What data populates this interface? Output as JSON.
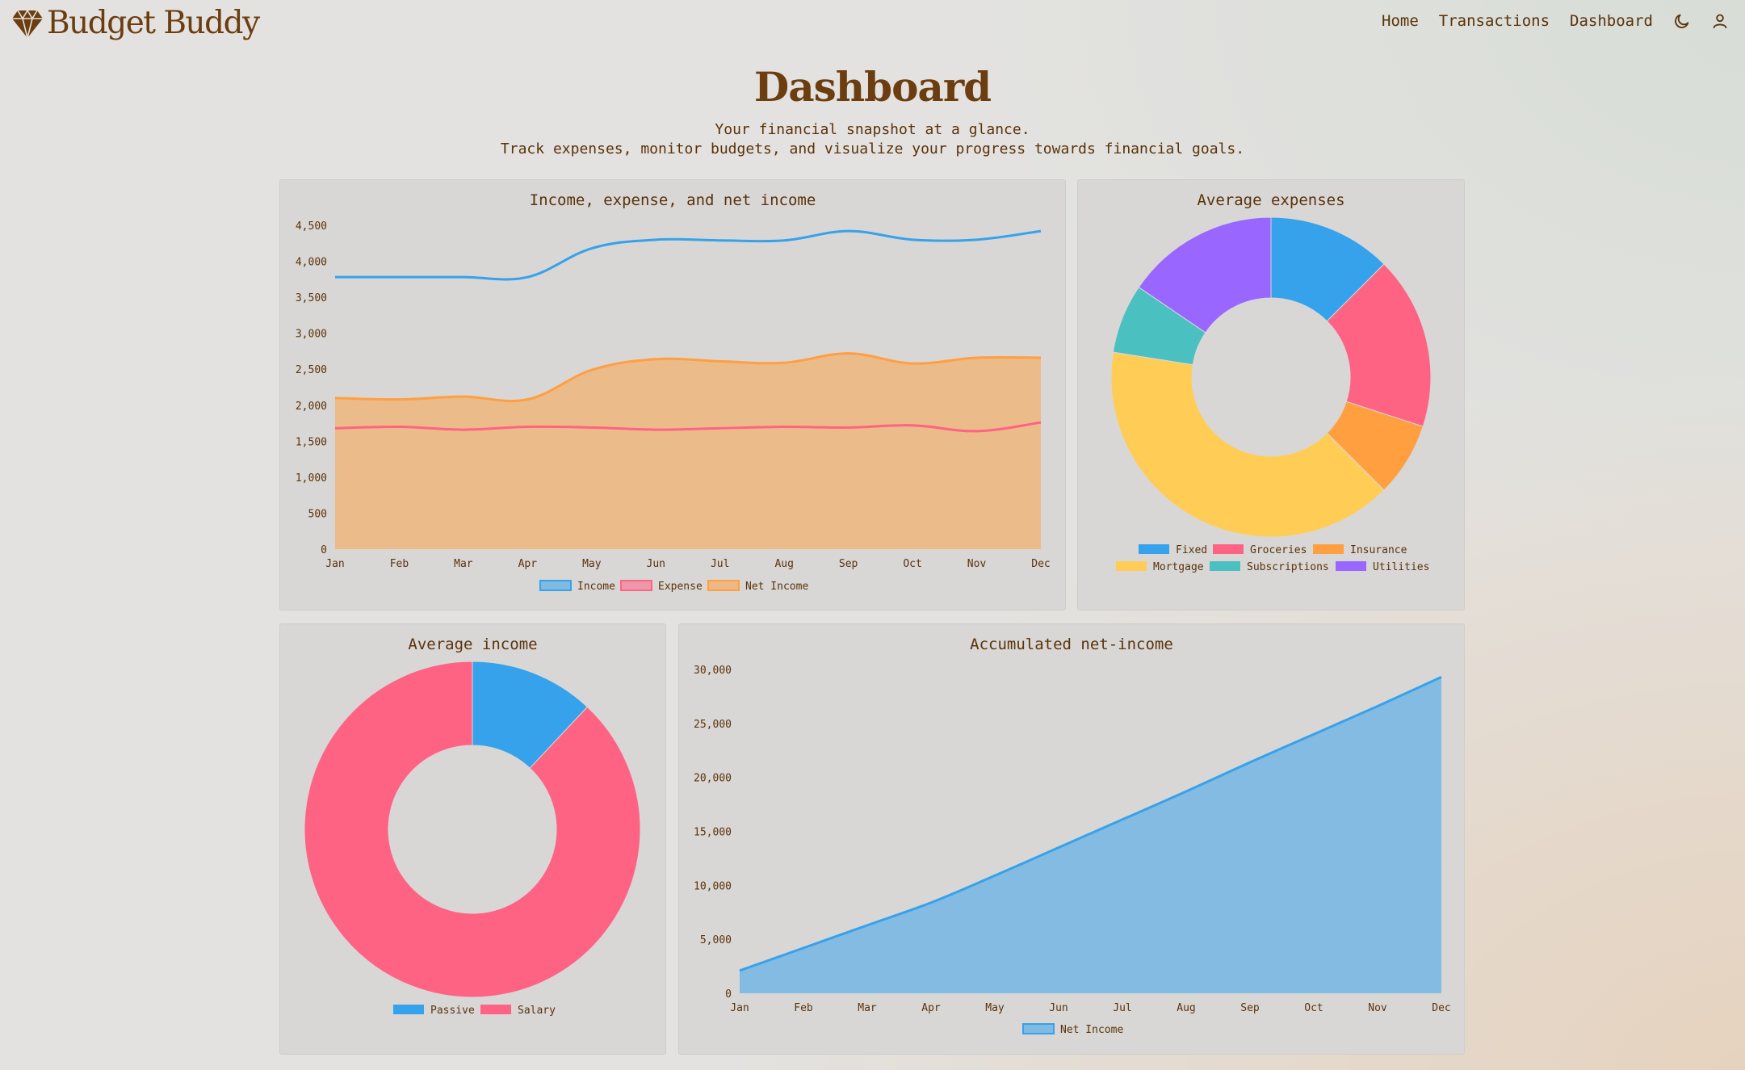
{
  "app": {
    "brand": "Budget Buddy",
    "nav": [
      {
        "label": "Home"
      },
      {
        "label": "Transactions"
      },
      {
        "label": "Dashboard"
      }
    ]
  },
  "page": {
    "title": "Dashboard",
    "subtitle_line1": "Your financial snapshot at a glance.",
    "subtitle_line2": "Track expenses, monitor budgets, and visualize your progress towards financial goals."
  },
  "colors": {
    "text": "#5b3209",
    "blue": "#36a2eb",
    "pink": "#ff6384",
    "orange": "#ff9f40",
    "yellow": "#ffcd56",
    "teal": "#4bc0c0",
    "purple": "#9966ff"
  },
  "chart_data": [
    {
      "id": "income_expense_net",
      "type": "line",
      "title": "Income, expense, and net income",
      "categories": [
        "Jan",
        "Feb",
        "Mar",
        "Apr",
        "May",
        "Jun",
        "Jul",
        "Aug",
        "Sep",
        "Oct",
        "Nov",
        "Dec"
      ],
      "series": [
        {
          "name": "Income",
          "color": "#36a2eb",
          "fill": false,
          "values": [
            3780,
            3780,
            3780,
            3780,
            4180,
            4300,
            4290,
            4290,
            4420,
            4300,
            4300,
            4420
          ]
        },
        {
          "name": "Expense",
          "color": "#ff6384",
          "fill": false,
          "values": [
            1680,
            1700,
            1660,
            1700,
            1690,
            1660,
            1680,
            1700,
            1690,
            1720,
            1640,
            1760
          ]
        },
        {
          "name": "Net Income",
          "color": "#ff9f40",
          "fill": true,
          "values": [
            2100,
            2080,
            2120,
            2080,
            2490,
            2640,
            2610,
            2590,
            2720,
            2580,
            2660,
            2660
          ]
        }
      ],
      "ylim": [
        0,
        4500
      ],
      "yticks": [
        0,
        500,
        1000,
        1500,
        2000,
        2500,
        3000,
        3500,
        4000,
        4500
      ],
      "legend": "bottom"
    },
    {
      "id": "average_expenses",
      "type": "pie",
      "title": "Average expenses",
      "labels": [
        "Fixed",
        "Groceries",
        "Insurance",
        "Mortgage",
        "Subscriptions",
        "Utilities"
      ],
      "values": [
        12.5,
        17.5,
        7.5,
        40,
        7,
        15.5
      ],
      "colors": [
        "#36a2eb",
        "#ff6384",
        "#ff9f40",
        "#ffcd56",
        "#4bc0c0",
        "#9966ff"
      ],
      "legend": "bottom"
    },
    {
      "id": "average_income",
      "type": "pie",
      "title": "Average income",
      "labels": [
        "Passive",
        "Salary"
      ],
      "values": [
        12,
        88
      ],
      "colors": [
        "#36a2eb",
        "#ff6384"
      ],
      "legend": "bottom"
    },
    {
      "id": "accumulated_net_income",
      "type": "area",
      "title": "Accumulated net-income",
      "categories": [
        "Jan",
        "Feb",
        "Mar",
        "Apr",
        "May",
        "Jun",
        "Jul",
        "Aug",
        "Sep",
        "Oct",
        "Nov",
        "Dec"
      ],
      "series": [
        {
          "name": "Net Income",
          "color": "#36a2eb",
          "values": [
            2100,
            4200,
            6300,
            8400,
            10900,
            13500,
            16100,
            18700,
            21400,
            24000,
            26600,
            29300
          ]
        }
      ],
      "ylim": [
        0,
        30000
      ],
      "yticks": [
        0,
        5000,
        10000,
        15000,
        20000,
        25000,
        30000
      ],
      "legend": "bottom"
    }
  ]
}
